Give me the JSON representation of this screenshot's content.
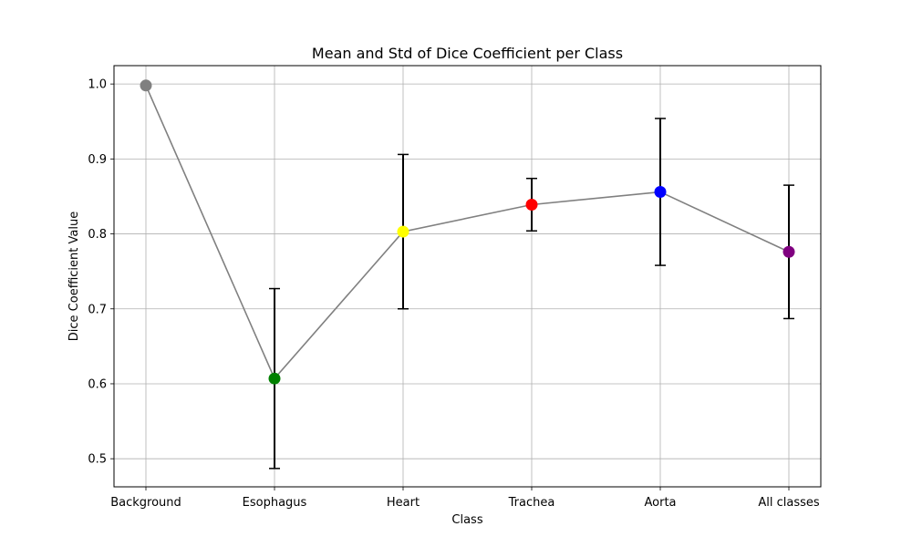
{
  "chart_data": {
    "type": "line",
    "title": "Mean and Std of Dice Coefficient per Class",
    "xlabel": "Class",
    "ylabel": "Dice Coefficient Value",
    "categories": [
      "Background",
      "Esophagus",
      "Heart",
      "Trachea",
      "Aorta",
      "All classes"
    ],
    "values": [
      0.998,
      0.607,
      0.803,
      0.839,
      0.856,
      0.776
    ],
    "errors": [
      0.0,
      0.12,
      0.103,
      0.035,
      0.098,
      0.089
    ],
    "point_colors": [
      "#808080",
      "#008000",
      "#ffff00",
      "#ff0000",
      "#0000ff",
      "#800080"
    ],
    "line_color": "#808080",
    "errorbar_color": "#000000",
    "ylim": [
      0.4625,
      1.0245
    ],
    "yticks": [
      0.5,
      0.6,
      0.7,
      0.8,
      0.9,
      1.0
    ],
    "grid": true
  }
}
